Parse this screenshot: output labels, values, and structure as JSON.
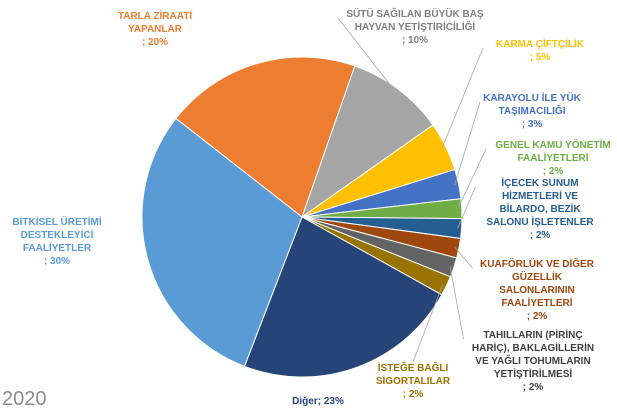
{
  "chart_data": {
    "type": "pie",
    "categories": [
      "TARLA ZİRAATİ YAPANLAR",
      "SÜTÜ SAĞILAN BÜYÜK BAŞ HAYVAN YETİŞTİRİCİLİĞİ",
      "KARMA ÇİFTÇİLİK",
      "KARAYOLU İLE YÜK TAŞIMACILIĞI",
      "GENEL KAMU YÖNETİM FAALİYETLERİ",
      "İÇECEK SUNUM HİZMETLERİ VE BİLARDO, BEZİK SALONU İŞLETENLER",
      "KUAFÖRLÜK VE DİĞER GÜZELLİK SALONLARININ FAALİYETLERİ",
      "TAHILLARIN (PİRİNÇ HARİÇ), BAKLAGİLLERİN VE YAĞLI TOHUMLARIN YETİŞTİRİLMESİ",
      "İSTEĞE BAĞLI SİGORTALILAR",
      "Diğer",
      "BİTKİSEL ÜRETİMİ DESTEKLEYİCİ FAALİYETLER"
    ],
    "values": [
      20,
      10,
      5,
      3,
      2,
      2,
      2,
      2,
      2,
      23,
      30
    ],
    "value_labels": [
      "; 20%",
      "; 10%",
      "; 5%",
      "; 3%",
      "; 2%",
      "; 2%",
      "; 2%",
      "; 2%",
      "; 2%",
      "; 23%",
      "; 30%"
    ],
    "colors": [
      "#ed7d31",
      "#a5a5a5",
      "#ffc000",
      "#4472c4",
      "#70ad47",
      "#255e91",
      "#9e480e",
      "#636363",
      "#997300",
      "#264478",
      "#5b9bd5"
    ],
    "label_colors": [
      "#ed7d31",
      "#7f7f7f",
      "#ffc000",
      "#4472c4",
      "#70ad47",
      "#255e91",
      "#9e480e",
      "#404040",
      "#997300",
      "#264478",
      "#5b9bd5"
    ]
  },
  "footer_text": "2020"
}
